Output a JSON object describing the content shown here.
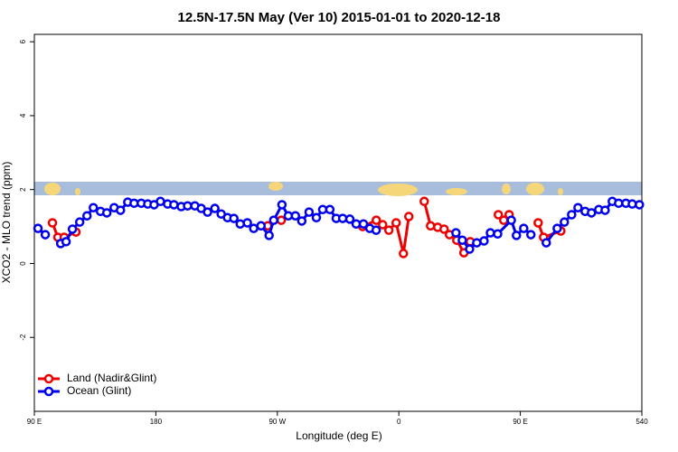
{
  "chart_data": {
    "type": "line",
    "title": "12.5N-17.5N May (Ver 10)   2015-01-01 to 2020-12-18",
    "xlabel": "Longitude (deg E)",
    "ylabel": "XCO2 - MLO trend (ppm)",
    "xlim": [
      90,
      540
    ],
    "xticks": [
      {
        "value": 90,
        "label": "90 E"
      },
      180,
      {
        "value": 270,
        "label": "90 W"
      },
      {
        "value": 360,
        "label": "0"
      },
      {
        "value": 450,
        "label": "90 E"
      },
      540
    ],
    "ylim": [
      -4,
      6.2
    ],
    "yticks": [
      -2,
      0,
      2,
      4,
      6
    ],
    "legend": "bottom-left",
    "series": [
      {
        "name": "Land (Nadir&Glint)",
        "color": "#ee0000",
        "x": [
          103.4,
          107.4,
          112.1,
          120.8,
          null,
          262.9,
          272.9,
          null,
          333.2,
          343.3,
          348,
          352.6,
          358,
          363.4,
          367.4,
          null,
          378.8,
          383.5,
          388.8,
          393.5,
          397.5,
          402.9,
          408.2,
          412.9,
          null,
          433.7,
          437.7,
          441.7,
          null,
          463.2,
          467.2,
          480
        ],
        "values": [
          1.1,
          0.71,
          0.71,
          0.85,
          null,
          1.02,
          1.17,
          null,
          1.0,
          1.17,
          1.05,
          0.9,
          1.1,
          0.27,
          1.27,
          null,
          1.68,
          1.02,
          0.98,
          0.93,
          0.78,
          0.63,
          0.29,
          0.59,
          null,
          1.32,
          1.17,
          1.32,
          null,
          1.1,
          0.71,
          0.88
        ]
      },
      {
        "name": "Ocean (Glint)",
        "color": "#0000ee",
        "x": [
          92.7,
          98.1,
          null,
          109.5,
          113.5,
          118.2,
          123.6,
          129,
          133.7,
          139,
          143.7,
          149.1,
          153.8,
          159.2,
          163.9,
          169.2,
          174,
          178.7,
          183.4,
          188.7,
          193.4,
          198.8,
          203.5,
          208.9,
          213.6,
          218.3,
          223.7,
          228.4,
          233.1,
          237.8,
          242.5,
          247.8,
          252.5,
          257.9,
          263.9,
          267.3,
          273.4,
          278.1,
          283.4,
          288.1,
          293.5,
          298.9,
          303.6,
          308.9,
          313.6,
          318.4,
          323.7,
          328.4,
          333.8,
          338.5,
          343.2,
          null,
          402.3,
          407,
          412.4,
          417.7,
          423.1,
          427.8,
          433.2,
          443.3,
          447.1,
          452.5,
          457.8,
          null,
          469.2,
          477.3,
          482.6,
          488,
          492.7,
          498,
          502.7,
          508.1,
          512.8,
          518.1,
          522.8,
          528.2,
          532.9,
          538.2
        ],
        "values": [
          0.95,
          0.78,
          null,
          0.54,
          0.59,
          0.93,
          1.12,
          1.29,
          1.51,
          1.41,
          1.37,
          1.51,
          1.44,
          1.66,
          1.63,
          1.63,
          1.61,
          1.59,
          1.68,
          1.61,
          1.59,
          1.54,
          1.56,
          1.56,
          1.49,
          1.39,
          1.49,
          1.34,
          1.24,
          1.22,
          1.07,
          1.1,
          0.95,
          1.02,
          0.76,
          1.17,
          1.59,
          1.29,
          1.29,
          1.15,
          1.39,
          1.24,
          1.46,
          1.46,
          1.22,
          1.22,
          1.2,
          1.07,
          1.07,
          0.95,
          0.9,
          null,
          0.83,
          0.63,
          0.39,
          0.56,
          0.61,
          0.83,
          0.8,
          1.17,
          0.76,
          0.95,
          0.78,
          null,
          0.56,
          0.95,
          1.12,
          1.32,
          1.51,
          1.41,
          1.37,
          1.46,
          1.44,
          1.68,
          1.63,
          1.63,
          1.61,
          1.59
        ]
      }
    ]
  }
}
